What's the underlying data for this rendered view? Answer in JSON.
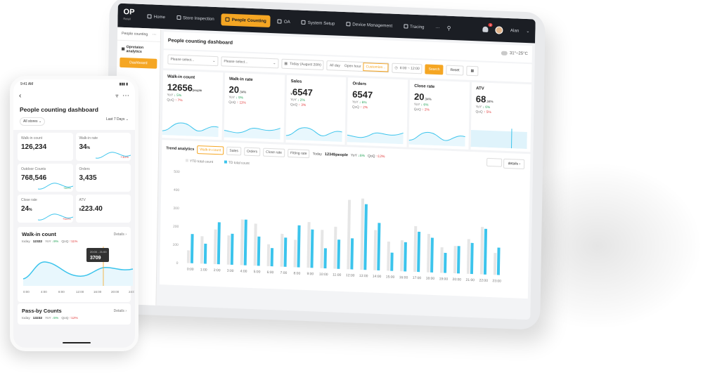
{
  "tablet": {
    "logo": "OP",
    "logo_sub": "Retail",
    "nav": [
      {
        "label": "Home",
        "active": false
      },
      {
        "label": "Store Inspection",
        "active": false
      },
      {
        "label": "People Counting",
        "active": true
      },
      {
        "label": "OA",
        "active": false
      },
      {
        "label": "System Setup",
        "active": false
      },
      {
        "label": "Device Management",
        "active": false
      },
      {
        "label": "Tracing",
        "active": false
      }
    ],
    "more": "···",
    "notifications": "2",
    "user": "Alan",
    "sidebar": {
      "section": "People counting",
      "group": "Opretaion analytics",
      "item": "Dashboard"
    },
    "page_title": "People counting dashboard",
    "weather": "31°~25°C",
    "filters": {
      "select1_placeholder": "Please select...",
      "select2_placeholder": "Please select...",
      "date": "Today (August 20th)",
      "seg_all": "All day",
      "seg_open": "Open hour",
      "seg_custom": "Customize...",
      "time_range": "8:00 ~ 12:00",
      "search": "Search",
      "reset": "Reset"
    },
    "kpis": [
      {
        "title": "Walk-in count",
        "value": "12656",
        "unit": "people",
        "yoy": "5%",
        "qoq": "7%"
      },
      {
        "title": "Walk-in rate",
        "value": "20",
        "unit": ".34%",
        "yoy": "9%",
        "qoq": "11%"
      },
      {
        "title": "Sales",
        "value": "6547",
        "unit": "¥",
        "yoy": "2%",
        "qoq": "3%"
      },
      {
        "title": "Orders",
        "value": "6547",
        "unit": "",
        "yoy": "6%",
        "qoq": "2%"
      },
      {
        "title": "Close rate",
        "value": "20",
        "unit": ".34%",
        "yoy": "6%",
        "qoq": "2%"
      },
      {
        "title": "ATV",
        "value": "68",
        "unit": ".34%",
        "yoy": "6%",
        "qoq": "5%"
      }
    ],
    "trend": {
      "title": "Trend analytics",
      "tabs": [
        "Walk-in count",
        "Sales",
        "Orders",
        "Close rate",
        "Fitting rate"
      ],
      "today_label": "Today",
      "today_value": "12345people",
      "yoy": "6%",
      "qoq": "12%",
      "details": "details"
    }
  },
  "chart_data": {
    "type": "bar",
    "categories": [
      "0:00",
      "1:00",
      "2:00",
      "3:00",
      "4:00",
      "5:00",
      "6:00",
      "7:00",
      "8:00",
      "9:00",
      "10:00",
      "11:00",
      "12:00",
      "13:00",
      "14:00",
      "15:00",
      "16:00",
      "17:00",
      "18:00",
      "19:00",
      "20:00",
      "21:00",
      "22:00",
      "23:00"
    ],
    "series": [
      {
        "name": "YTD total count",
        "values": [
          70,
          150,
          190,
          160,
          250,
          230,
          120,
          180,
          150,
          250,
          210,
          230,
          380,
          390,
          220,
          160,
          170,
          250,
          210,
          140,
          150,
          190,
          260,
          120
        ],
        "color": "#e6e6e6"
      },
      {
        "name": "TD total count",
        "values": [
          160,
          110,
          230,
          170,
          250,
          160,
          100,
          160,
          230,
          210,
          110,
          160,
          170,
          360,
          260,
          100,
          160,
          220,
          190,
          110,
          150,
          170,
          250,
          150
        ],
        "color": "#3cc4ec"
      }
    ],
    "ylim": [
      0,
      500
    ],
    "yticks": [
      0,
      100,
      200,
      300,
      400,
      500
    ],
    "legend": "top-left",
    "grid": false
  },
  "phone": {
    "time": "9:41 AM",
    "title": "People counting dashboard",
    "filter_store": "All stores",
    "filter_range": "Last 7 Days",
    "kpis": [
      {
        "title": "Walk-in count",
        "value": "126,234",
        "unit": "",
        "change": ""
      },
      {
        "title": "Walk-in rate",
        "value": "34",
        "unit": "%",
        "change": "+10%"
      },
      {
        "title": "Outdoor Counts",
        "value": "768,546",
        "unit": "",
        "change": "-10%"
      },
      {
        "title": "Orders",
        "value": "3,435",
        "unit": "",
        "change": ""
      },
      {
        "title": "Close rate",
        "value": "24",
        "unit": "%",
        "change": "+10%"
      },
      {
        "title": "ATV",
        "value": "223.40",
        "unit": "¥",
        "change": ""
      }
    ],
    "walkin_card": {
      "title": "Walk-in count",
      "details": "Details",
      "today_label": "today",
      "today_value": "12322",
      "yoy": "9%",
      "qoq": "11%",
      "tooltip_range": "20:00 - 21:00",
      "tooltip_value": "3709",
      "x_ticks": [
        "0:00",
        "4:00",
        "8:00",
        "12:00",
        "16:00",
        "20:00",
        "24:00"
      ]
    },
    "passby_card": {
      "title": "Pass-by Counts",
      "details": "Details",
      "today_label": "today",
      "today_value": "13232",
      "yoy": "5%",
      "qoq": "12%"
    }
  }
}
